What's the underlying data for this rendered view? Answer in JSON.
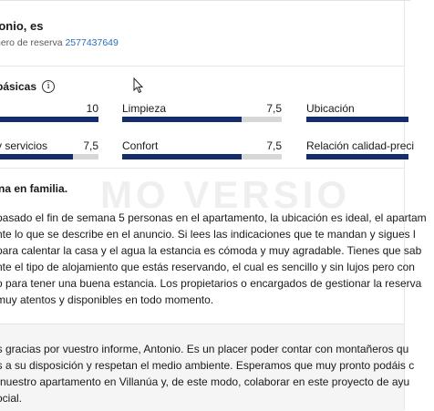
{
  "header": {
    "reviewer": "tonio, es",
    "booking_label": "nero de reserva",
    "booking_number": "2577437649"
  },
  "ratings": {
    "title": "básicas",
    "items": [
      {
        "label": "",
        "value": "10",
        "fraction": 1.0
      },
      {
        "label": "Limpieza",
        "value": "7,5",
        "fraction": 0.75
      },
      {
        "label": "Ubicación",
        "value": "",
        "fraction": 1.0
      },
      {
        "label": "y servicios",
        "value": "7,5",
        "fraction": 0.75
      },
      {
        "label": "Confort",
        "value": "7,5",
        "fraction": 0.75
      },
      {
        "label": "Relación calidad-preci",
        "value": "",
        "fraction": 1.0
      }
    ]
  },
  "watermark": "MO VERSIO",
  "review": {
    "title": "na en familia.",
    "lines": [
      "pasado el fin de semana 5 personas en el apartamento, la ubicación es ideal, el apartam",
      "nte lo que se describe en el anuncio. Si lees las indicaciones que te mandan y sigues l",
      "para calentar la casa y el agua la estancia es cómoda y muy agradable. Tienes que sab",
      "nte el tipo de alojamiento que estás reservando, el cual es sencillo y sin lujos pero con",
      "o para tener una buena estancia. Los propietarios o encargados de gestionar la reserva",
      "muy atentos y disponibles en todo momento."
    ]
  },
  "response": {
    "lines": [
      "as gracias por vuestro informe, Antonio. Es un placer poder contar con montañeros qu",
      "os a su disposición y respetan el medio ambiente. Esperamos que muy pronto podáis c",
      "e nuestro apartamento en Villanúa y, de este modo, colaborar en este proyecto de ayu",
      "social."
    ]
  },
  "colors": {
    "bar_fill": "#152d6b",
    "bar_track": "#d7d7d7",
    "link": "#2a6ebb",
    "response_bg": "#f5f5f5"
  }
}
